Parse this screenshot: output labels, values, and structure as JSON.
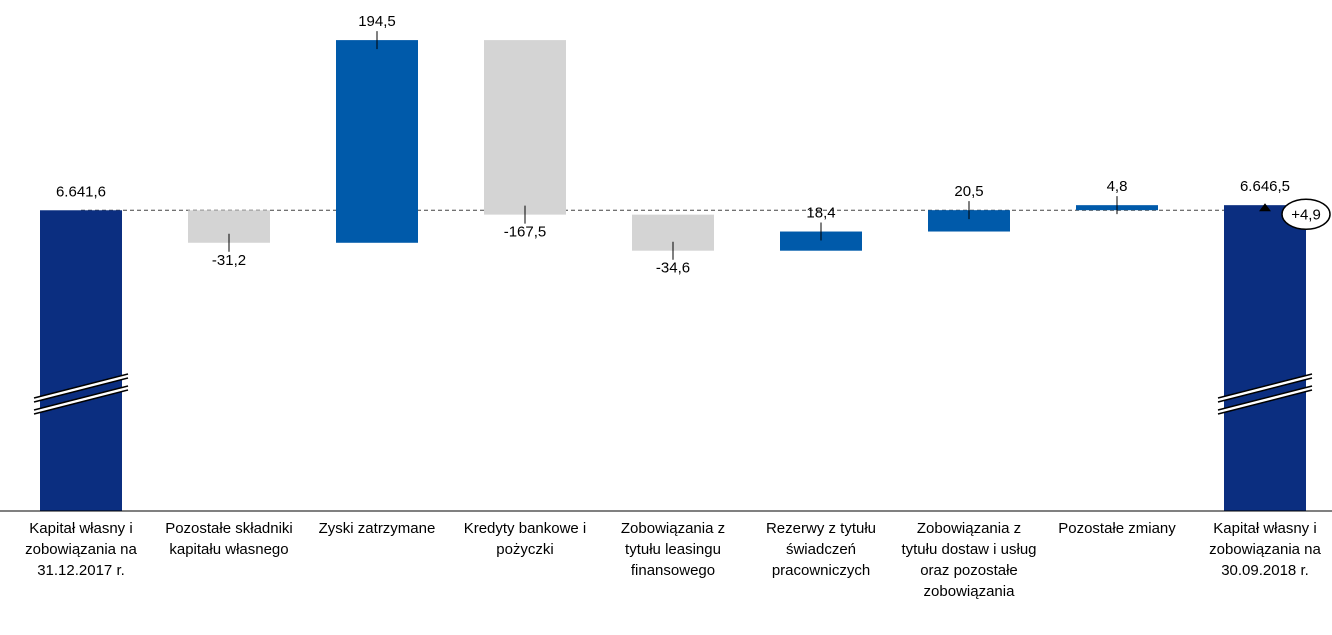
{
  "chart_data": {
    "type": "waterfall",
    "categories": [
      "Kapitał własny i zobowiązania na 31.12.2017 r.",
      "Pozostałe składniki kapitału własnego",
      "Zyski zatrzymane",
      "Kredyty bankowe i pożyczki",
      "Zobowiązania z tytułu leasingu finansowego",
      "Rezerwy z tytułu świadczeń pracowniczych",
      "Zobowiązania z tytułu dostaw i usług oraz pozostałe zobowiązania",
      "Pozostałe zmiany",
      "Kapitał własny i zobowiązania na 30.09.2018 r."
    ],
    "values": [
      6641.6,
      -31.2,
      194.5,
      -167.5,
      -34.6,
      18.4,
      20.5,
      4.8,
      6646.5
    ],
    "value_labels": [
      "6.641,6",
      "-31,2",
      "194,5",
      "-167,5",
      "-34,6",
      "18,4",
      "20,5",
      "4,8",
      "6.646,5"
    ],
    "measures": [
      "total",
      "relative",
      "relative",
      "relative",
      "relative",
      "relative",
      "relative",
      "relative",
      "total"
    ],
    "colors": {
      "total": "#0b2e80",
      "increase": "#005aaa",
      "decrease": "#d4d4d4"
    },
    "ylim": [
      6353,
      6805
    ],
    "axis_break": true,
    "annotation": "+4,9"
  }
}
